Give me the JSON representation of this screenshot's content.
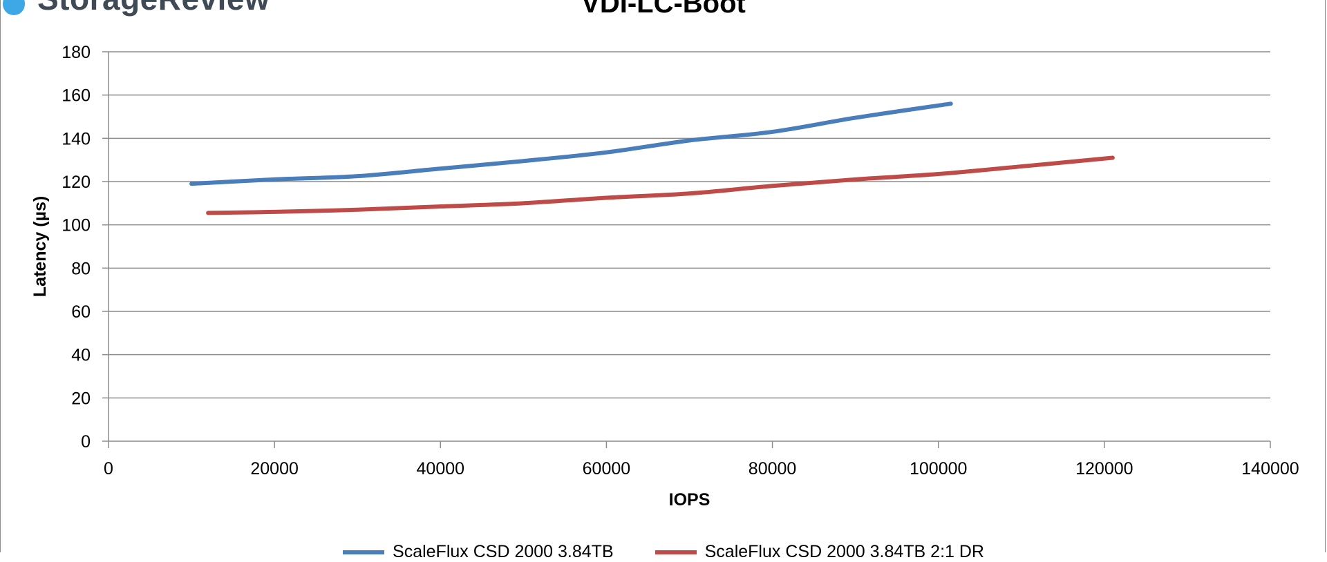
{
  "brand": {
    "name": "StorageReview",
    "accent": "#3ea8e6"
  },
  "chart_data": {
    "type": "line",
    "title": "VDI-LC-Boot",
    "xlabel": "IOPS",
    "ylabel": "Latency (µs)",
    "xlim": [
      0,
      140000
    ],
    "ylim": [
      0,
      180
    ],
    "xticks": [
      0,
      20000,
      40000,
      60000,
      80000,
      100000,
      120000,
      140000
    ],
    "yticks": [
      0,
      20,
      40,
      60,
      80,
      100,
      120,
      140,
      160,
      180
    ],
    "grid": true,
    "legend_placement": "bottom",
    "series": [
      {
        "name": "ScaleFlux CSD 2000 3.84TB",
        "color": "#4a7ebb",
        "x": [
          10000,
          20000,
          30000,
          40000,
          50000,
          60000,
          70000,
          80000,
          90000,
          101500
        ],
        "y": [
          119,
          121,
          122.5,
          126,
          129.5,
          133.5,
          139,
          143,
          149.5,
          156
        ]
      },
      {
        "name": "ScaleFlux CSD 2000 3.84TB 2:1 DR",
        "color": "#be4b48",
        "x": [
          12000,
          20000,
          30000,
          40000,
          50000,
          60000,
          70000,
          80000,
          90000,
          100000,
          110000,
          121000
        ],
        "y": [
          105.5,
          106,
          107,
          108.5,
          110,
          112.5,
          114.5,
          118,
          121,
          123.5,
          127,
          131
        ]
      }
    ]
  }
}
